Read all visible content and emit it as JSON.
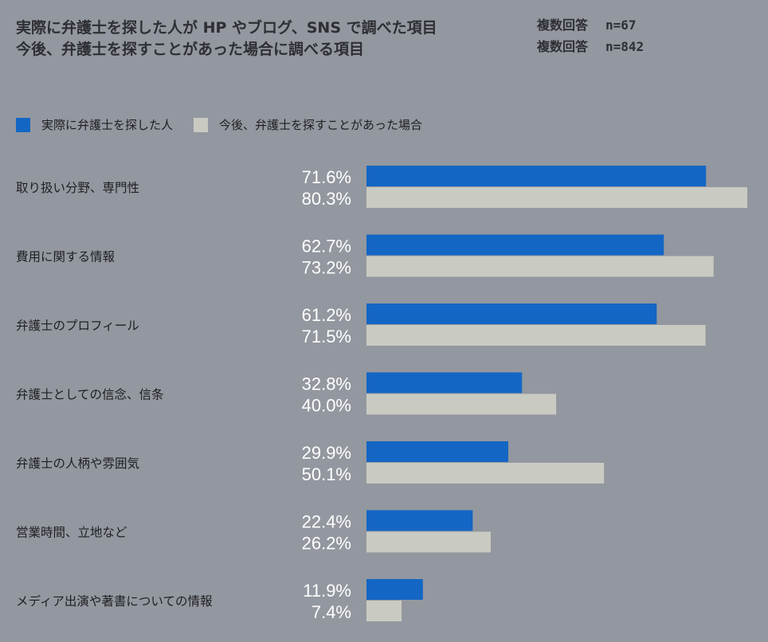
{
  "title": {
    "line1": "実際に弁護士を探した人が HP やブログ、SNS で調べた項目",
    "line1_meta": "複数回答",
    "line1_n": "n=67",
    "line2": "今後、弁護士を探すことがあった場合に調べる項目",
    "line2_meta": "複数回答",
    "line2_n": "n=842"
  },
  "legend": [
    {
      "label": "実際に弁護士を探した人",
      "color": "#1466c4"
    },
    {
      "label": "今後、弁護士を探すことがあった場合",
      "color": "#c9cac2"
    }
  ],
  "chart_data": {
    "type": "bar",
    "orientation": "horizontal",
    "categories": [
      "取り扱い分野、専門性",
      "費用に関する情報",
      "弁護士のプロフィール",
      "弁護士としての信念、信条",
      "弁護士の人柄や雰囲気",
      "営業時間、立地など",
      "メディア出演や著書についての情報"
    ],
    "series": [
      {
        "name": "実際に弁護士を探した人",
        "color": "#1466c4",
        "values": [
          71.6,
          62.7,
          61.2,
          32.8,
          29.9,
          22.4,
          11.9
        ]
      },
      {
        "name": "今後、弁護士を探すことがあった場合",
        "color": "#c9cac2",
        "values": [
          80.3,
          73.2,
          71.5,
          40.0,
          50.1,
          26.2,
          7.4
        ]
      }
    ],
    "value_suffix": "%",
    "xlim": [
      0,
      80.3
    ],
    "grid": false,
    "legend_position": "top-left"
  }
}
